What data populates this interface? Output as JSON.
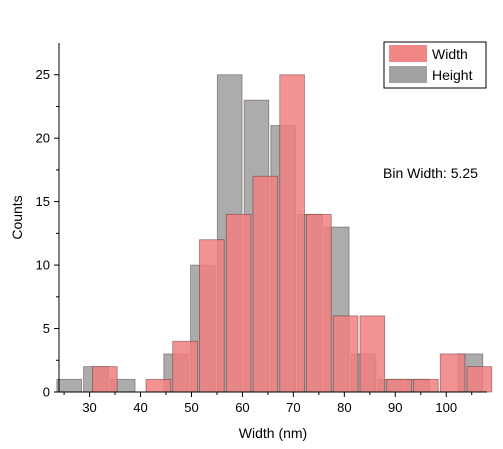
{
  "chart_data": {
    "type": "bar",
    "title": "",
    "xlabel": "Width (nm)",
    "ylabel": "Counts",
    "xlim": [
      24,
      108
    ],
    "ylim": [
      0,
      27.5
    ],
    "xticks": [
      30,
      40,
      50,
      60,
      70,
      80,
      90,
      100
    ],
    "yticks": [
      0,
      5,
      10,
      15,
      20,
      25
    ],
    "bin_width": 5.25,
    "annotation": "Bin Width: 5.25",
    "legend_position": "top-right",
    "grid": false,
    "series": [
      {
        "name": "Width",
        "color": "#f07f7f",
        "alpha": 0.85,
        "x": [
          33.0,
          43.5,
          48.75,
          54.0,
          59.25,
          64.5,
          69.75,
          75.0,
          80.25,
          85.5,
          90.75,
          96.0,
          101.25,
          106.5
        ],
        "values": [
          2,
          1,
          4,
          12,
          14,
          17,
          25,
          14,
          6,
          6,
          1,
          1,
          3,
          2
        ]
      },
      {
        "name": "Height",
        "color": "#8c8c8c",
        "alpha": 0.72,
        "x": [
          26.0,
          31.25,
          36.5,
          47.0,
          52.25,
          57.5,
          62.75,
          68.0,
          73.25,
          78.5,
          83.75,
          89.0,
          94.25,
          104.75
        ],
        "values": [
          1,
          2,
          1,
          3,
          10,
          25,
          23,
          21,
          14,
          13,
          3,
          1,
          1,
          3
        ]
      }
    ]
  }
}
